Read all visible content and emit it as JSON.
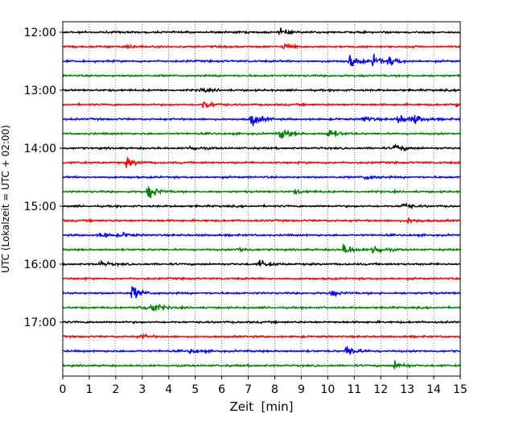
{
  "chart_data": {
    "type": "line",
    "xlabel": "Zeit  [min]",
    "ylabel": "UTC (Lokalzeit = UTC + 02:00)",
    "xlim": [
      0,
      15
    ],
    "x_ticks": [
      "0",
      "1",
      "2",
      "3",
      "4",
      "5",
      "6",
      "7",
      "8",
      "9",
      "10",
      "11",
      "12",
      "13",
      "14",
      "15"
    ],
    "y_ticks": [
      "12:00",
      "13:00",
      "14:00",
      "15:00",
      "16:00",
      "17:00"
    ],
    "grid": "vertical dotted",
    "trace_colors": [
      "#000000",
      "#ff0000",
      "#0000ff",
      "#008000"
    ],
    "traces": [
      {
        "start": "12:00",
        "events": [
          {
            "t": 8.2,
            "a": 4
          }
        ]
      },
      {
        "start": "12:15",
        "events": [
          {
            "t": 8.3,
            "a": 5
          },
          {
            "t": 2.4,
            "a": 3
          }
        ]
      },
      {
        "start": "12:30",
        "events": [
          {
            "t": 10.8,
            "a": 9
          },
          {
            "t": 11.7,
            "a": 7
          },
          {
            "t": 12.3,
            "a": 6
          }
        ]
      },
      {
        "start": "12:45",
        "events": []
      },
      {
        "start": "13:00",
        "events": [
          {
            "t": 5.2,
            "a": 3
          }
        ]
      },
      {
        "start": "13:15",
        "events": [
          {
            "t": 5.3,
            "a": 6
          },
          {
            "t": 14.8,
            "a": 4
          }
        ]
      },
      {
        "start": "13:30",
        "events": [
          {
            "t": 7.1,
            "a": 10
          },
          {
            "t": 12.6,
            "a": 7
          },
          {
            "t": 13.2,
            "a": 7
          },
          {
            "t": 11.3,
            "a": 4
          }
        ]
      },
      {
        "start": "13:45",
        "events": [
          {
            "t": 8.2,
            "a": 8
          },
          {
            "t": 10.0,
            "a": 7
          }
        ]
      },
      {
        "start": "14:00",
        "events": [
          {
            "t": 12.5,
            "a": 5
          },
          {
            "t": 4.8,
            "a": 3
          }
        ]
      },
      {
        "start": "14:15",
        "events": [
          {
            "t": 2.4,
            "a": 6
          }
        ]
      },
      {
        "start": "14:30",
        "events": [
          {
            "t": 11.4,
            "a": 4
          }
        ]
      },
      {
        "start": "14:45",
        "events": [
          {
            "t": 3.2,
            "a": 10
          },
          {
            "t": 8.7,
            "a": 3
          }
        ]
      },
      {
        "start": "15:00",
        "events": [
          {
            "t": 12.8,
            "a": 4
          }
        ]
      },
      {
        "start": "15:15",
        "events": [
          {
            "t": 13.0,
            "a": 4
          }
        ]
      },
      {
        "start": "15:30",
        "events": [
          {
            "t": 1.4,
            "a": 4
          },
          {
            "t": 2.2,
            "a": 3
          }
        ]
      },
      {
        "start": "15:45",
        "events": [
          {
            "t": 10.6,
            "a": 8
          },
          {
            "t": 11.7,
            "a": 7
          },
          {
            "t": 6.6,
            "a": 4
          }
        ]
      },
      {
        "start": "16:00",
        "events": [
          {
            "t": 7.4,
            "a": 6
          },
          {
            "t": 1.4,
            "a": 3
          }
        ]
      },
      {
        "start": "16:15",
        "events": []
      },
      {
        "start": "16:30",
        "events": [
          {
            "t": 2.6,
            "a": 10
          },
          {
            "t": 10.1,
            "a": 4
          }
        ]
      },
      {
        "start": "16:45",
        "events": [
          {
            "t": 3.3,
            "a": 8
          },
          {
            "t": 2.9,
            "a": 4
          }
        ]
      },
      {
        "start": "17:00",
        "events": []
      },
      {
        "start": "17:15",
        "events": [
          {
            "t": 2.9,
            "a": 3
          }
        ]
      },
      {
        "start": "17:30",
        "events": [
          {
            "t": 10.7,
            "a": 9
          },
          {
            "t": 4.8,
            "a": 3
          }
        ]
      },
      {
        "start": "17:45",
        "events": [
          {
            "t": 12.5,
            "a": 6
          }
        ]
      }
    ]
  }
}
